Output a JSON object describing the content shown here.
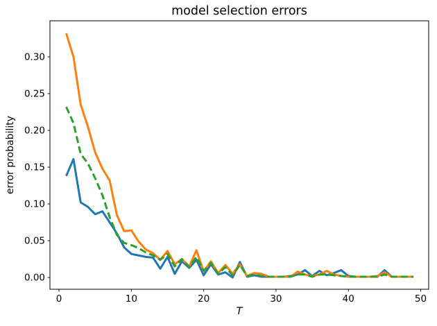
{
  "colors": {
    "background": "#ffffff",
    "spine": "#000000",
    "text": "#000000",
    "series_blue": "#1f77b4",
    "series_orange": "#ff7f0e",
    "series_green": "#2ca02c"
  },
  "chart_data": {
    "type": "line",
    "title": "model selection errors",
    "xlabel": "T",
    "ylabel": "error probability",
    "xlim": [
      -1.25,
      51.1
    ],
    "ylim": [
      -0.016,
      0.349
    ],
    "xticks": [
      0,
      10,
      20,
      30,
      40,
      50
    ],
    "yticks": [
      0,
      0.05,
      0.1,
      0.15,
      0.2,
      0.25,
      0.3
    ],
    "ytick_labels": [
      "0.00",
      "0.05",
      "0.10",
      "0.15",
      "0.20",
      "0.25",
      "0.30"
    ],
    "grid": false,
    "legend": "none",
    "x": [
      1,
      2,
      3,
      4,
      5,
      6,
      7,
      8,
      9,
      10,
      11,
      12,
      13,
      14,
      15,
      16,
      17,
      18,
      19,
      20,
      21,
      22,
      23,
      24,
      25,
      26,
      27,
      28,
      29,
      30,
      31,
      32,
      33,
      34,
      35,
      36,
      37,
      38,
      39,
      40,
      41,
      42,
      43,
      44,
      45,
      46,
      47,
      48,
      49
    ],
    "series": [
      {
        "name": "blue solid",
        "color": "#1f77b4",
        "linestyle": "solid",
        "values": [
          0.138,
          0.161,
          0.102,
          0.096,
          0.086,
          0.09,
          0.075,
          0.06,
          0.041,
          0.032,
          0.03,
          0.028,
          0.027,
          0.012,
          0.028,
          0.005,
          0.022,
          0.013,
          0.024,
          0.003,
          0.018,
          0.004,
          0.007,
          0.0,
          0.021,
          0.001,
          0.003,
          0.001,
          0.001,
          0.001,
          0.001,
          0.002,
          0.004,
          0.01,
          0.002,
          0.009,
          0.003,
          0.006,
          0.01,
          0.002,
          0.001,
          0.001,
          0.001,
          0.001,
          0.01,
          0.001,
          0.001,
          0.001,
          0.001
        ]
      },
      {
        "name": "orange solid",
        "color": "#ff7f0e",
        "linestyle": "solid",
        "values": [
          0.332,
          0.3,
          0.235,
          0.205,
          0.17,
          0.148,
          0.132,
          0.085,
          0.063,
          0.064,
          0.049,
          0.038,
          0.033,
          0.024,
          0.036,
          0.018,
          0.025,
          0.015,
          0.037,
          0.008,
          0.022,
          0.006,
          0.017,
          0.005,
          0.018,
          0.002,
          0.006,
          0.005,
          0.001,
          0.001,
          0.001,
          0.001,
          0.008,
          0.004,
          0.002,
          0.004,
          0.009,
          0.004,
          0.002,
          0.001,
          0.001,
          0.001,
          0.001,
          0.002,
          0.007,
          0.001,
          0.001,
          0.001,
          0.001
        ]
      },
      {
        "name": "green dashed",
        "color": "#2ca02c",
        "linestyle": "dashed",
        "values": [
          0.232,
          0.21,
          0.168,
          0.155,
          0.135,
          0.112,
          0.082,
          0.058,
          0.047,
          0.044,
          0.04,
          0.034,
          0.03,
          0.024,
          0.032,
          0.015,
          0.025,
          0.014,
          0.028,
          0.009,
          0.02,
          0.005,
          0.014,
          0.003,
          0.017,
          0.002,
          0.004,
          0.002,
          0.001,
          0.001,
          0.001,
          0.001,
          0.004,
          0.004,
          0.001,
          0.004,
          0.004,
          0.003,
          0.002,
          0.001,
          0.001,
          0.001,
          0.001,
          0.001,
          0.004,
          0.001,
          0.001,
          0.001,
          0.001
        ]
      }
    ]
  }
}
